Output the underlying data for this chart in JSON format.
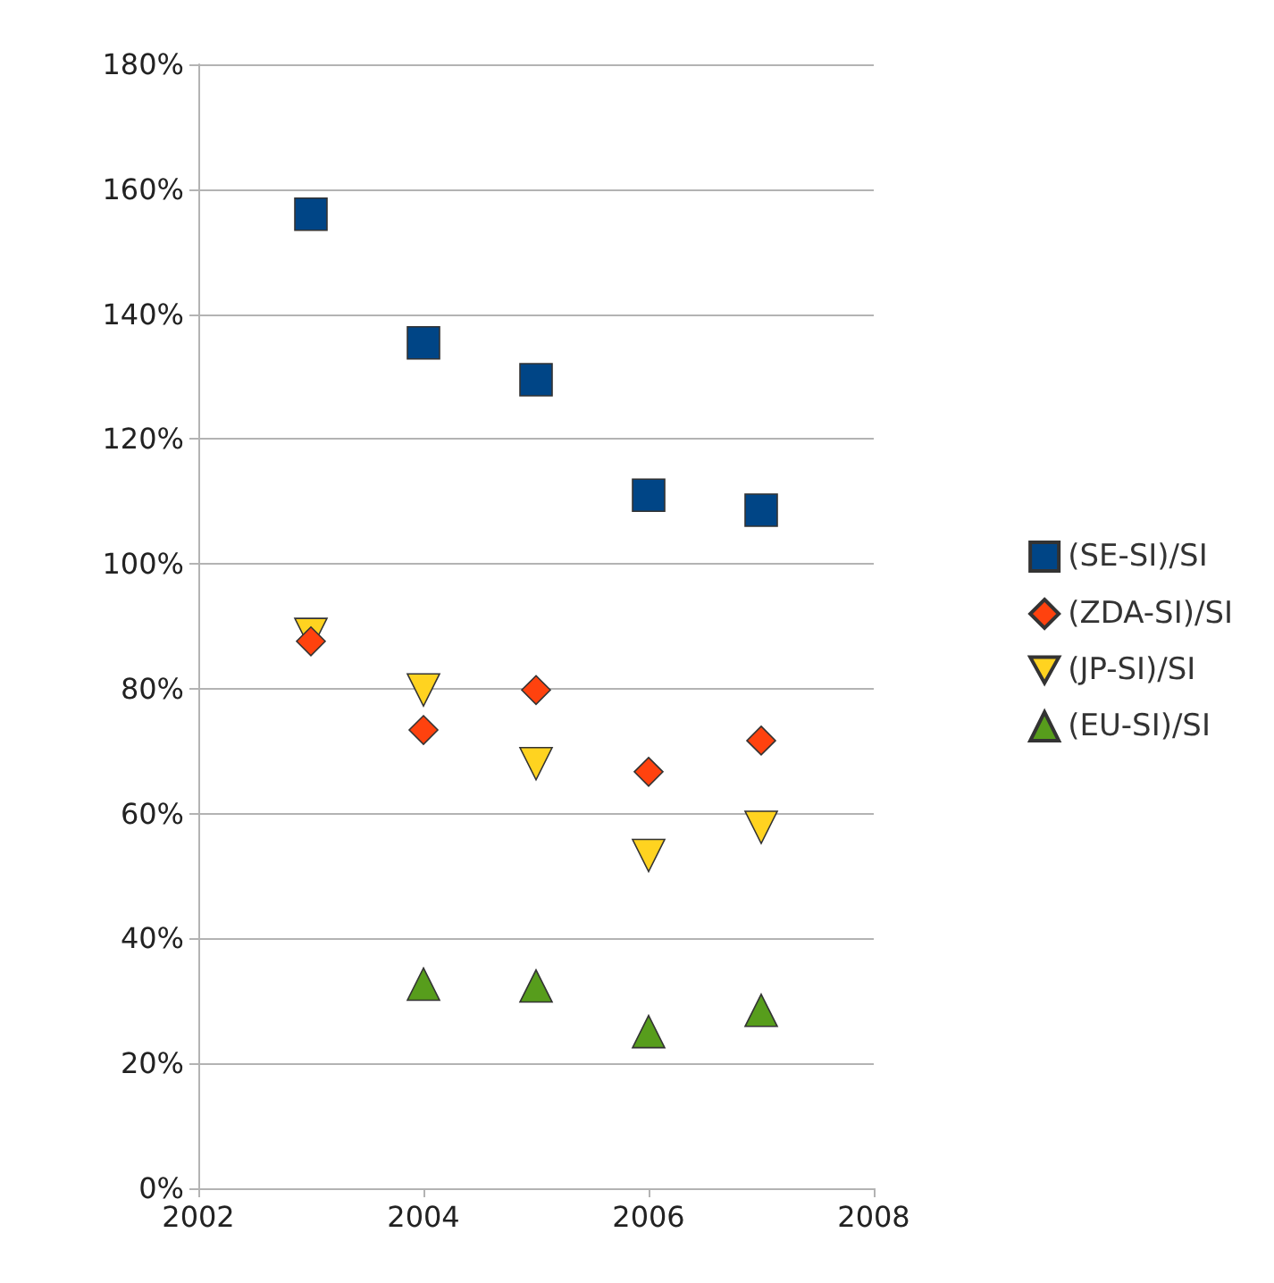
{
  "chart_data": {
    "type": "scatter",
    "x": [
      2003,
      2004,
      2005,
      2006,
      2007
    ],
    "series": [
      {
        "name": "(SE-SI)/SI",
        "color": "#004586",
        "marker": "square",
        "values": [
          156,
          135.4,
          129.5,
          111,
          108.6
        ]
      },
      {
        "name": "(ZDA-SI)/SI",
        "color": "#ff420e",
        "marker": "diamond",
        "values": [
          87.6,
          73.4,
          79.8,
          66.7,
          71.7
        ]
      },
      {
        "name": "(JP-SI)/SI",
        "color": "#ffd320",
        "marker": "triangle-down",
        "values": [
          88.7,
          79.8,
          68,
          53.3,
          57.8
        ]
      },
      {
        "name": "(EU-SI)/SI",
        "color": "#579d1c",
        "marker": "triangle",
        "values": [
          null,
          32.7,
          32.4,
          25.1,
          28.5
        ]
      }
    ],
    "xlim": [
      2002,
      2008
    ],
    "xticks": [
      2002,
      2004,
      2006,
      2008
    ],
    "ylim": [
      0,
      180
    ],
    "yticks": [
      {
        "value": 0,
        "label": "0%"
      },
      {
        "value": 20,
        "label": "20%"
      },
      {
        "value": 40,
        "label": "40%"
      },
      {
        "value": 60,
        "label": "60%"
      },
      {
        "value": 80,
        "label": "80%"
      },
      {
        "value": 100,
        "label": "100%"
      },
      {
        "value": 120,
        "label": "120%"
      },
      {
        "value": 140,
        "label": "140%"
      },
      {
        "value": 160,
        "label": "160%"
      },
      {
        "value": 180,
        "label": "180%"
      }
    ],
    "grid": "y",
    "legend": "right"
  }
}
